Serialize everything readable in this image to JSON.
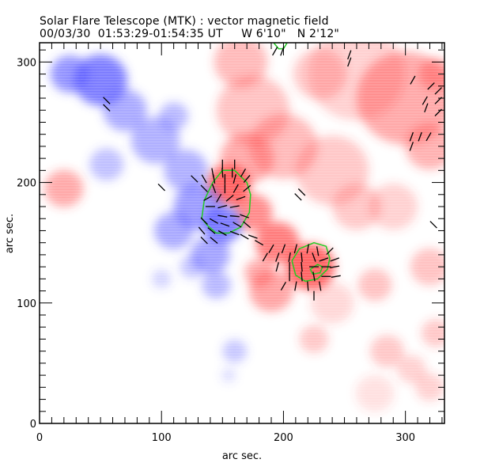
{
  "header": {
    "title": "Solar Flare Telescope (MTK) : vector magnetic field",
    "subtitle": "00/03/30  01:53:29-01:54:35 UT     W 6'10\"   N 2'12\""
  },
  "chart_data": {
    "type": "heatmap",
    "title": "Solar Flare Telescope (MTK) : vector magnetic field",
    "subtitle": "00/03/30  01:53:29-01:54:35 UT     W 6'10\"   N 2'12\"",
    "xlabel": "arc sec.",
    "ylabel": "arc sec.",
    "xlim": [
      0,
      332
    ],
    "ylim": [
      0,
      316
    ],
    "xticks": [
      0,
      100,
      200,
      300
    ],
    "yticks": [
      0,
      100,
      200,
      300
    ],
    "x_minor_step": 10,
    "y_minor_step": 10,
    "colors": {
      "positive_polarity": "#ff3a3a",
      "negative_polarity": "#4a4aff",
      "contour": "#22cc22",
      "vectors": "#000000"
    },
    "legend": "none",
    "blobs_description": "Longitudinal field: red = positive, blue = negative (x, y in arcsec, intensity 0-1, radius in arcsec)",
    "positive_blobs": [
      {
        "x": 155,
        "y": 198,
        "r": 18,
        "i": 1.0
      },
      {
        "x": 175,
        "y": 175,
        "r": 16,
        "i": 0.75
      },
      {
        "x": 195,
        "y": 150,
        "r": 18,
        "i": 0.85
      },
      {
        "x": 222,
        "y": 130,
        "r": 20,
        "i": 1.0
      },
      {
        "x": 170,
        "y": 220,
        "r": 22,
        "i": 0.55
      },
      {
        "x": 200,
        "y": 230,
        "r": 28,
        "i": 0.45
      },
      {
        "x": 240,
        "y": 210,
        "r": 30,
        "i": 0.35
      },
      {
        "x": 175,
        "y": 260,
        "r": 30,
        "i": 0.4
      },
      {
        "x": 165,
        "y": 300,
        "r": 22,
        "i": 0.45
      },
      {
        "x": 190,
        "y": 110,
        "r": 18,
        "i": 0.6
      },
      {
        "x": 180,
        "y": 125,
        "r": 12,
        "i": 0.55
      },
      {
        "x": 20,
        "y": 195,
        "r": 16,
        "i": 0.55
      },
      {
        "x": 300,
        "y": 270,
        "r": 40,
        "i": 0.55
      },
      {
        "x": 320,
        "y": 230,
        "r": 20,
        "i": 0.5
      },
      {
        "x": 325,
        "y": 290,
        "r": 14,
        "i": 0.55
      },
      {
        "x": 260,
        "y": 290,
        "r": 40,
        "i": 0.3
      },
      {
        "x": 230,
        "y": 290,
        "r": 22,
        "i": 0.35
      },
      {
        "x": 260,
        "y": 180,
        "r": 20,
        "i": 0.35
      },
      {
        "x": 290,
        "y": 180,
        "r": 20,
        "i": 0.3
      },
      {
        "x": 275,
        "y": 115,
        "r": 14,
        "i": 0.4
      },
      {
        "x": 225,
        "y": 70,
        "r": 12,
        "i": 0.35
      },
      {
        "x": 285,
        "y": 60,
        "r": 14,
        "i": 0.35
      },
      {
        "x": 320,
        "y": 130,
        "r": 16,
        "i": 0.4
      },
      {
        "x": 325,
        "y": 75,
        "r": 12,
        "i": 0.35
      },
      {
        "x": 240,
        "y": 100,
        "r": 18,
        "i": 0.25
      },
      {
        "x": 305,
        "y": 45,
        "r": 12,
        "i": 0.3
      },
      {
        "x": 275,
        "y": 25,
        "r": 16,
        "i": 0.2
      },
      {
        "x": 320,
        "y": 30,
        "r": 12,
        "i": 0.3
      }
    ],
    "negative_blobs": [
      {
        "x": 50,
        "y": 285,
        "r": 22,
        "i": 0.9
      },
      {
        "x": 25,
        "y": 290,
        "r": 16,
        "i": 0.75
      },
      {
        "x": 70,
        "y": 260,
        "r": 18,
        "i": 0.6
      },
      {
        "x": 95,
        "y": 235,
        "r": 20,
        "i": 0.55
      },
      {
        "x": 120,
        "y": 210,
        "r": 18,
        "i": 0.55
      },
      {
        "x": 55,
        "y": 215,
        "r": 14,
        "i": 0.45
      },
      {
        "x": 110,
        "y": 255,
        "r": 12,
        "i": 0.5
      },
      {
        "x": 130,
        "y": 180,
        "r": 20,
        "i": 0.7
      },
      {
        "x": 150,
        "y": 165,
        "r": 16,
        "i": 0.9
      },
      {
        "x": 110,
        "y": 160,
        "r": 16,
        "i": 0.6
      },
      {
        "x": 140,
        "y": 140,
        "r": 16,
        "i": 0.65
      },
      {
        "x": 145,
        "y": 115,
        "r": 12,
        "i": 0.5
      },
      {
        "x": 125,
        "y": 130,
        "r": 10,
        "i": 0.4
      },
      {
        "x": 100,
        "y": 120,
        "r": 8,
        "i": 0.3
      },
      {
        "x": 160,
        "y": 60,
        "r": 10,
        "i": 0.4
      },
      {
        "x": 155,
        "y": 40,
        "r": 6,
        "i": 0.25
      }
    ],
    "contours": [
      {
        "name": "contour-upper",
        "points": [
          [
            133,
            170
          ],
          [
            135,
            185
          ],
          [
            142,
            200
          ],
          [
            150,
            210
          ],
          [
            160,
            210
          ],
          [
            170,
            200
          ],
          [
            173,
            190
          ],
          [
            172,
            175
          ],
          [
            165,
            163
          ],
          [
            155,
            158
          ],
          [
            145,
            158
          ],
          [
            138,
            164
          ]
        ]
      },
      {
        "name": "contour-lower",
        "points": [
          [
            207,
            135
          ],
          [
            213,
            145
          ],
          [
            225,
            150
          ],
          [
            235,
            147
          ],
          [
            238,
            137
          ],
          [
            236,
            128
          ],
          [
            228,
            120
          ],
          [
            218,
            118
          ],
          [
            210,
            123
          ]
        ]
      },
      {
        "name": "contour-inner",
        "points": [
          [
            222,
            128
          ],
          [
            228,
            132
          ],
          [
            232,
            130
          ],
          [
            230,
            125
          ],
          [
            224,
            124
          ]
        ]
      },
      {
        "name": "contour-top",
        "points": [
          [
            192,
            316
          ],
          [
            196,
            311
          ],
          [
            200,
            311
          ],
          [
            203,
            316
          ]
        ]
      }
    ],
    "vectors": [
      {
        "x": 150,
        "y": 215,
        "a": 90
      },
      {
        "x": 160,
        "y": 215,
        "a": 90
      },
      {
        "x": 142,
        "y": 208,
        "a": 100
      },
      {
        "x": 150,
        "y": 208,
        "a": 95
      },
      {
        "x": 158,
        "y": 208,
        "a": 90
      },
      {
        "x": 167,
        "y": 208,
        "a": 60
      },
      {
        "x": 127,
        "y": 203,
        "a": 135
      },
      {
        "x": 135,
        "y": 203,
        "a": 120
      },
      {
        "x": 143,
        "y": 203,
        "a": 100
      },
      {
        "x": 152,
        "y": 203,
        "a": 90
      },
      {
        "x": 160,
        "y": 203,
        "a": 75
      },
      {
        "x": 170,
        "y": 203,
        "a": 50
      },
      {
        "x": 135,
        "y": 195,
        "a": 135
      },
      {
        "x": 143,
        "y": 195,
        "a": 110
      },
      {
        "x": 152,
        "y": 195,
        "a": 90
      },
      {
        "x": 161,
        "y": 195,
        "a": 60
      },
      {
        "x": 170,
        "y": 195,
        "a": 40
      },
      {
        "x": 138,
        "y": 187,
        "a": 30
      },
      {
        "x": 147,
        "y": 187,
        "a": 60
      },
      {
        "x": 156,
        "y": 187,
        "a": 40
      },
      {
        "x": 165,
        "y": 187,
        "a": 20
      },
      {
        "x": 140,
        "y": 180,
        "a": 0
      },
      {
        "x": 150,
        "y": 180,
        "a": 15
      },
      {
        "x": 160,
        "y": 180,
        "a": 10
      },
      {
        "x": 150,
        "y": 172,
        "a": 170
      },
      {
        "x": 160,
        "y": 172,
        "a": 175
      },
      {
        "x": 168,
        "y": 172,
        "a": 160
      },
      {
        "x": 135,
        "y": 168,
        "a": 135
      },
      {
        "x": 143,
        "y": 168,
        "a": 150
      },
      {
        "x": 152,
        "y": 165,
        "a": 160
      },
      {
        "x": 162,
        "y": 165,
        "a": 150
      },
      {
        "x": 170,
        "y": 165,
        "a": 140
      },
      {
        "x": 133,
        "y": 160,
        "a": 130
      },
      {
        "x": 141,
        "y": 160,
        "a": 140
      },
      {
        "x": 150,
        "y": 158,
        "a": 150
      },
      {
        "x": 160,
        "y": 158,
        "a": 160
      },
      {
        "x": 168,
        "y": 155,
        "a": 150
      },
      {
        "x": 135,
        "y": 152,
        "a": 135
      },
      {
        "x": 143,
        "y": 152,
        "a": 140
      },
      {
        "x": 175,
        "y": 155,
        "a": 160
      },
      {
        "x": 180,
        "y": 150,
        "a": 150
      },
      {
        "x": 100,
        "y": 196,
        "a": 135
      },
      {
        "x": 55,
        "y": 268,
        "a": 135
      },
      {
        "x": 55,
        "y": 262,
        "a": 135
      },
      {
        "x": 215,
        "y": 192,
        "a": 135
      },
      {
        "x": 190,
        "y": 145,
        "a": 60
      },
      {
        "x": 200,
        "y": 145,
        "a": 70
      },
      {
        "x": 210,
        "y": 145,
        "a": 75
      },
      {
        "x": 220,
        "y": 145,
        "a": 80
      },
      {
        "x": 228,
        "y": 143,
        "a": 100
      },
      {
        "x": 238,
        "y": 143,
        "a": 45
      },
      {
        "x": 185,
        "y": 138,
        "a": 60
      },
      {
        "x": 195,
        "y": 138,
        "a": 70
      },
      {
        "x": 205,
        "y": 138,
        "a": 80
      },
      {
        "x": 215,
        "y": 138,
        "a": 95
      },
      {
        "x": 225,
        "y": 138,
        "a": 110
      },
      {
        "x": 233,
        "y": 136,
        "a": 20
      },
      {
        "x": 242,
        "y": 136,
        "a": 20
      },
      {
        "x": 195,
        "y": 130,
        "a": 75
      },
      {
        "x": 205,
        "y": 130,
        "a": 90
      },
      {
        "x": 215,
        "y": 130,
        "a": 95
      },
      {
        "x": 225,
        "y": 130,
        "a": 0
      },
      {
        "x": 235,
        "y": 130,
        "a": 0
      },
      {
        "x": 242,
        "y": 130,
        "a": 10
      },
      {
        "x": 205,
        "y": 122,
        "a": 90
      },
      {
        "x": 215,
        "y": 122,
        "a": 95
      },
      {
        "x": 225,
        "y": 122,
        "a": 100
      },
      {
        "x": 235,
        "y": 122,
        "a": 0
      },
      {
        "x": 243,
        "y": 122,
        "a": 10
      },
      {
        "x": 200,
        "y": 114,
        "a": 60
      },
      {
        "x": 210,
        "y": 114,
        "a": 80
      },
      {
        "x": 220,
        "y": 114,
        "a": 95
      },
      {
        "x": 230,
        "y": 114,
        "a": 100
      },
      {
        "x": 225,
        "y": 106,
        "a": 90
      },
      {
        "x": 321,
        "y": 280,
        "a": 45
      },
      {
        "x": 327,
        "y": 276,
        "a": 45
      },
      {
        "x": 327,
        "y": 268,
        "a": 45
      },
      {
        "x": 327,
        "y": 258,
        "a": 45
      },
      {
        "x": 316,
        "y": 268,
        "a": 60
      },
      {
        "x": 317,
        "y": 262,
        "a": 70
      },
      {
        "x": 305,
        "y": 238,
        "a": 70
      },
      {
        "x": 312,
        "y": 238,
        "a": 70
      },
      {
        "x": 319,
        "y": 238,
        "a": 60
      },
      {
        "x": 305,
        "y": 230,
        "a": 70
      },
      {
        "x": 323,
        "y": 165,
        "a": 135
      },
      {
        "x": 306,
        "y": 285,
        "a": 60
      },
      {
        "x": 254,
        "y": 306,
        "a": 70
      },
      {
        "x": 254,
        "y": 300,
        "a": 70
      },
      {
        "x": 193,
        "y": 309,
        "a": 60
      },
      {
        "x": 199,
        "y": 309,
        "a": 70
      },
      {
        "x": 212,
        "y": 188,
        "a": 135
      }
    ]
  }
}
